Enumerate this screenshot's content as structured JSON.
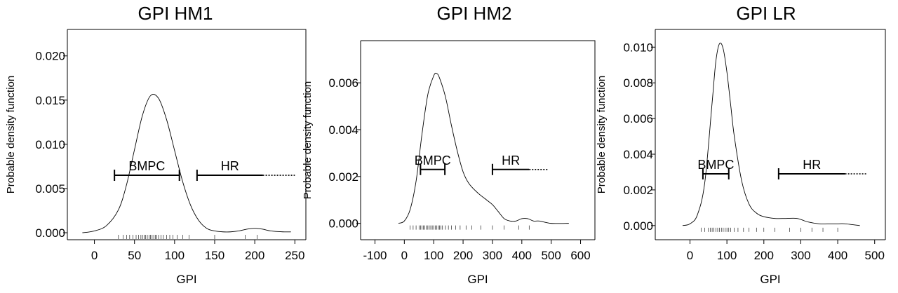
{
  "chart_data": [
    {
      "type": "line",
      "title": "GPI HM1",
      "xlabel": "GPI",
      "ylabel": "Probable density function",
      "xlim": [
        -25,
        255
      ],
      "ylim": [
        0,
        0.0222
      ],
      "xticks": [
        0,
        50,
        100,
        150,
        200,
        250
      ],
      "xtick_labels": [
        "0",
        "50",
        "100",
        "150",
        "200",
        "250"
      ],
      "yticks": [
        0,
        0.005,
        0.01,
        0.015,
        0.02
      ],
      "ytick_labels": [
        "0.000",
        "0.005",
        "0.010",
        "0.015",
        "0.020"
      ],
      "curve": {
        "x": [
          -15,
          0,
          15,
          30,
          40,
          50,
          60,
          70,
          80,
          90,
          100,
          110,
          120,
          130,
          140,
          150,
          160,
          170,
          180,
          190,
          200,
          210,
          220,
          235,
          245
        ],
        "y": [
          0,
          0.0002,
          0.0008,
          0.0026,
          0.0054,
          0.0094,
          0.0133,
          0.0155,
          0.0152,
          0.0128,
          0.0093,
          0.0058,
          0.0031,
          0.0014,
          0.0005,
          0.0002,
          0.0001,
          0.0001,
          0.0002,
          0.0004,
          0.0005,
          0.0004,
          0.0002,
          0.0001,
          0.0001
        ]
      },
      "rug": [
        30,
        36,
        40,
        44,
        48,
        52,
        55,
        58,
        60,
        62,
        64,
        66,
        68,
        70,
        72,
        74,
        76,
        78,
        80,
        83,
        86,
        90,
        94,
        98,
        103,
        110,
        118,
        150,
        188,
        203
      ],
      "intervals": [
        {
          "label": "BMPC",
          "from": 25,
          "to": 106,
          "y": 0.0065,
          "caps": true
        },
        {
          "label": "HR",
          "from": 128,
          "to": 210,
          "y": 0.0065,
          "caps": "left",
          "dotted_to": 250
        }
      ]
    },
    {
      "type": "line",
      "title": "GPI HM2",
      "xlabel": "GPI",
      "ylabel": "Probable density function",
      "xlim": [
        -125,
        625
      ],
      "ylim": [
        -0.0004,
        0.0075
      ],
      "xticks": [
        -100,
        0,
        100,
        200,
        300,
        400,
        500,
        600
      ],
      "xtick_labels": [
        "-100",
        "0",
        "100",
        "200",
        "300",
        "400",
        "500",
        "600"
      ],
      "yticks": [
        0,
        0.002,
        0.004,
        0.006
      ],
      "ytick_labels": [
        "0.000",
        "0.002",
        "0.004",
        "0.006"
      ],
      "curve": {
        "x": [
          -20,
          0,
          20,
          40,
          60,
          80,
          100,
          110,
          120,
          140,
          160,
          180,
          200,
          220,
          250,
          280,
          300,
          320,
          340,
          360,
          380,
          400,
          420,
          440,
          460,
          500,
          560
        ],
        "y": [
          0,
          0.0001,
          0.0006,
          0.0018,
          0.0038,
          0.0055,
          0.0063,
          0.0064,
          0.0062,
          0.0054,
          0.0042,
          0.0031,
          0.0022,
          0.0017,
          0.0013,
          0.001,
          0.0008,
          0.0005,
          0.0002,
          0.0001,
          0.0001,
          0.0002,
          0.0002,
          0.0001,
          0.0001,
          0.0,
          0.0
        ]
      },
      "rug": [
        20,
        30,
        40,
        50,
        55,
        60,
        65,
        70,
        75,
        80,
        85,
        90,
        95,
        100,
        105,
        110,
        115,
        120,
        125,
        130,
        140,
        150,
        160,
        175,
        190,
        210,
        230,
        260,
        300,
        340,
        390,
        425
      ],
      "intervals": [
        {
          "label": "BMPC",
          "from": 55,
          "to": 138,
          "y": 0.0023,
          "caps": true
        },
        {
          "label": "HR",
          "from": 300,
          "to": 425,
          "y": 0.0023,
          "caps": "left",
          "dotted_to": 490
        }
      ]
    },
    {
      "type": "line",
      "title": "GPI LR",
      "xlabel": "GPI",
      "ylabel": "Probable density function",
      "xlim": [
        -75,
        510
      ],
      "ylim": [
        -0.0004,
        0.0106
      ],
      "xticks": [
        0,
        100,
        200,
        300,
        400,
        500
      ],
      "xtick_labels": [
        "0",
        "100",
        "200",
        "300",
        "400",
        "500"
      ],
      "yticks": [
        0,
        0.002,
        0.004,
        0.006,
        0.008,
        0.01
      ],
      "ytick_labels": [
        "0.000",
        "0.002",
        "0.004",
        "0.006",
        "0.008",
        "0.010"
      ],
      "curve": {
        "x": [
          -20,
          0,
          20,
          40,
          60,
          70,
          80,
          90,
          100,
          110,
          120,
          140,
          160,
          180,
          200,
          230,
          260,
          290,
          320,
          350,
          380,
          400,
          420,
          460
        ],
        "y": [
          0,
          0.0001,
          0.0006,
          0.0024,
          0.0069,
          0.0092,
          0.0102,
          0.0099,
          0.0086,
          0.0068,
          0.005,
          0.0025,
          0.0012,
          0.0007,
          0.0005,
          0.0004,
          0.0004,
          0.0004,
          0.0002,
          0.0001,
          0.0001,
          0.0001,
          0.0001,
          0.0
        ]
      },
      "rug": [
        30,
        40,
        50,
        55,
        60,
        65,
        70,
        75,
        80,
        85,
        90,
        95,
        100,
        105,
        110,
        120,
        130,
        145,
        160,
        180,
        200,
        230,
        270,
        300,
        330,
        360,
        400
      ],
      "intervals": [
        {
          "label": "BMPC",
          "from": 35,
          "to": 105,
          "y": 0.0029,
          "caps": true
        },
        {
          "label": "HR",
          "from": 240,
          "to": 420,
          "y": 0.0029,
          "caps": "left",
          "dotted_to": 480
        }
      ]
    }
  ]
}
